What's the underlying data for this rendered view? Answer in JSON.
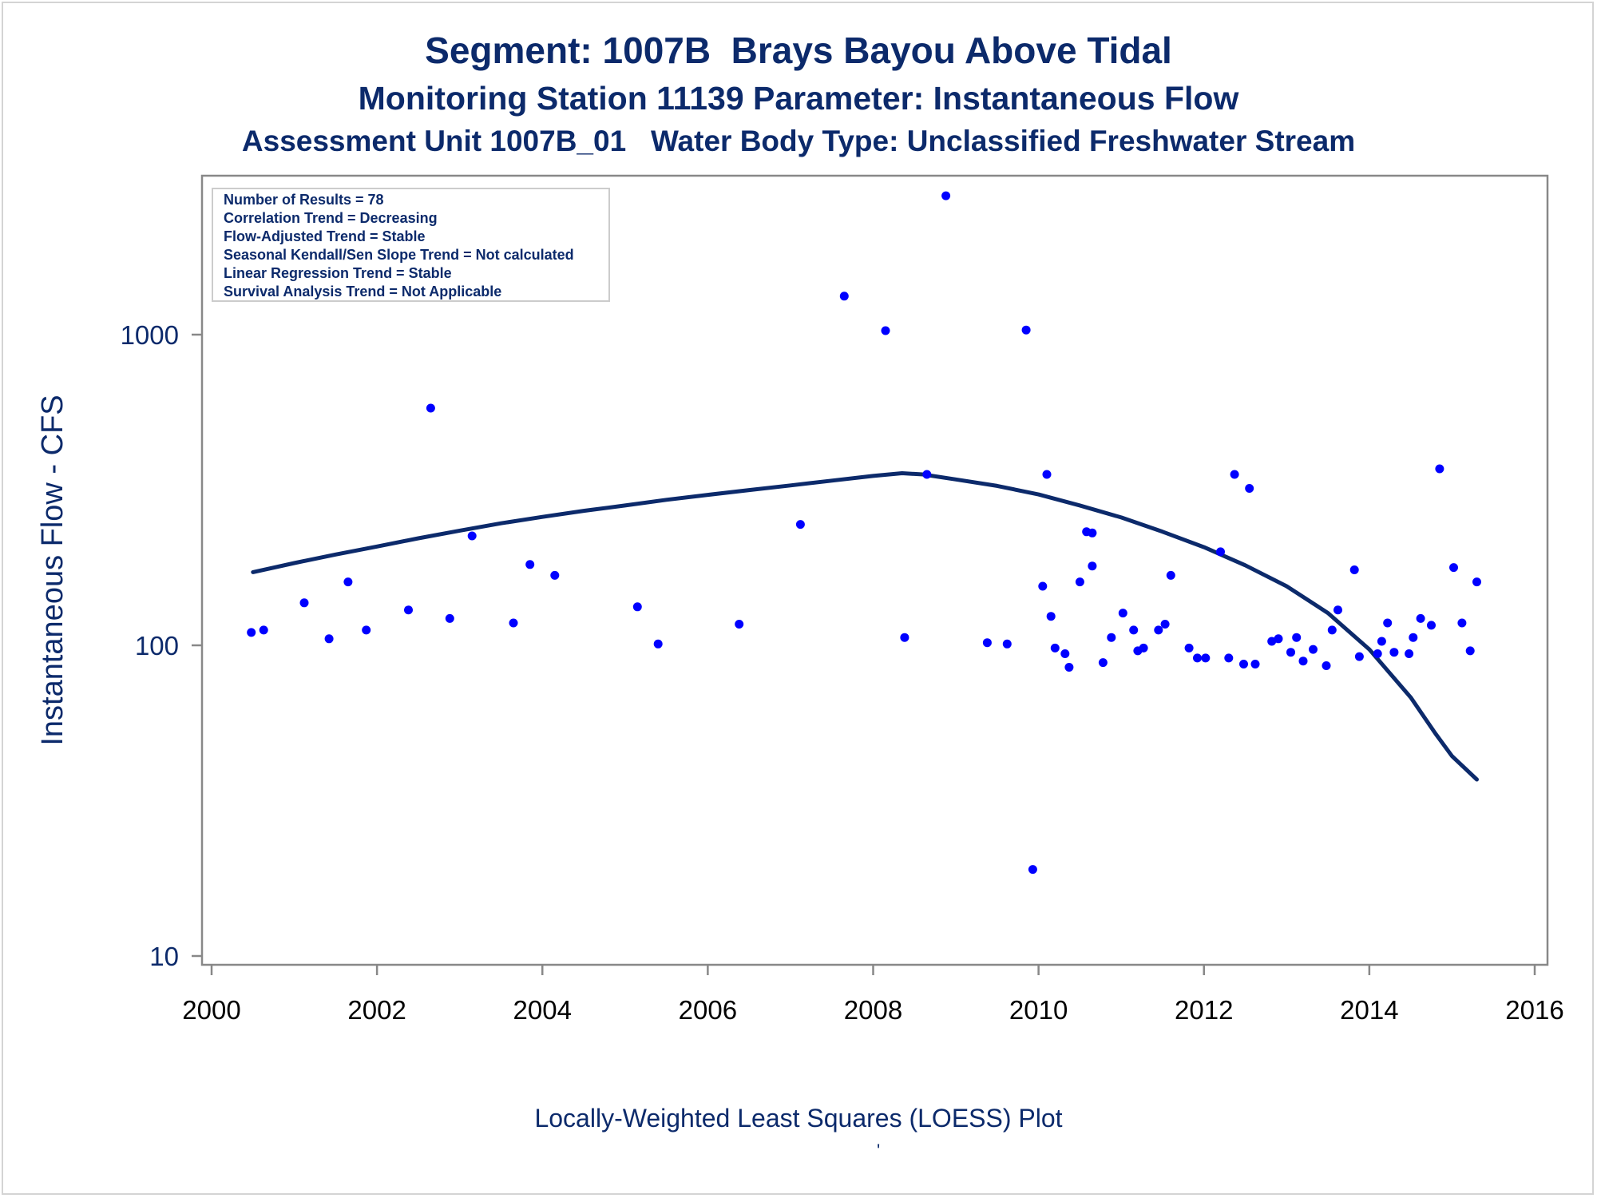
{
  "colors": {
    "text": "#0c2a6b",
    "marker": "#0000ff",
    "loess_line": "#0c2a6b",
    "axis": "#888888"
  },
  "titles": {
    "line1": "Segment: 1007B  Brays Bayou Above Tidal",
    "line2": "Monitoring Station 11139 Parameter: Instantaneous Flow",
    "line3": "Assessment Unit 1007B_01   Water Body Type: Unclassified Freshwater Stream"
  },
  "caption": {
    "text": "Locally-Weighted Least Squares (LOESS) Plot",
    "mark": "'"
  },
  "chart_data": {
    "type": "scatter",
    "title": "Segment: 1007B  Brays Bayou Above Tidal",
    "xlabel": "",
    "ylabel": "Instantaneous Flow - CFS",
    "x_scale": "linear",
    "y_scale": "log",
    "xlim": [
      2000,
      2016
    ],
    "ylim": [
      10,
      3000
    ],
    "grid": false,
    "x_ticks": [
      2000,
      2002,
      2004,
      2006,
      2008,
      2010,
      2012,
      2014,
      2016
    ],
    "x_tick_labels": [
      "2000",
      "2002",
      "2004",
      "2006",
      "2008",
      "2010",
      "2012",
      "2014",
      "2016"
    ],
    "y_ticks": [
      10,
      100,
      1000
    ],
    "y_tick_labels": [
      "10",
      "100",
      "1000"
    ],
    "legend": {
      "placement": "top-left",
      "entries": [
        "Number of Results = 78",
        "Correlation Trend = Decreasing",
        "Flow-Adjusted Trend = Stable",
        "Seasonal Kendall/Sen Slope Trend = Not calculated",
        "Linear Regression Trend = Stable",
        "Survival Analysis Trend = Not Applicable"
      ]
    },
    "points": [
      [
        2000.48,
        110
      ],
      [
        2000.63,
        112
      ],
      [
        2001.12,
        137
      ],
      [
        2001.42,
        105
      ],
      [
        2001.65,
        160
      ],
      [
        2001.87,
        112
      ],
      [
        2002.38,
        130
      ],
      [
        2002.65,
        580
      ],
      [
        2002.88,
        122
      ],
      [
        2003.15,
        225
      ],
      [
        2003.65,
        118
      ],
      [
        2003.85,
        182
      ],
      [
        2004.15,
        168
      ],
      [
        2005.15,
        133
      ],
      [
        2005.4,
        101
      ],
      [
        2006.38,
        117
      ],
      [
        2007.12,
        245
      ],
      [
        2007.65,
        1330
      ],
      [
        2008.15,
        1030
      ],
      [
        2008.38,
        106
      ],
      [
        2008.65,
        355
      ],
      [
        2008.88,
        2800
      ],
      [
        2009.38,
        102
      ],
      [
        2009.62,
        101
      ],
      [
        2009.85,
        1035
      ],
      [
        2009.93,
        19
      ],
      [
        2010.05,
        155
      ],
      [
        2010.1,
        355
      ],
      [
        2010.15,
        124
      ],
      [
        2010.2,
        98
      ],
      [
        2010.32,
        94
      ],
      [
        2010.37,
        85
      ],
      [
        2010.5,
        160
      ],
      [
        2010.58,
        232
      ],
      [
        2010.65,
        230
      ],
      [
        2010.65,
        180
      ],
      [
        2010.78,
        88
      ],
      [
        2010.88,
        106
      ],
      [
        2011.02,
        127
      ],
      [
        2011.15,
        112
      ],
      [
        2011.2,
        96
      ],
      [
        2011.27,
        98
      ],
      [
        2011.45,
        112
      ],
      [
        2011.53,
        117
      ],
      [
        2011.6,
        168
      ],
      [
        2011.82,
        98
      ],
      [
        2011.92,
        91
      ],
      [
        2012.02,
        91
      ],
      [
        2012.2,
        200
      ],
      [
        2012.3,
        91
      ],
      [
        2012.37,
        355
      ],
      [
        2012.48,
        87
      ],
      [
        2012.55,
        320
      ],
      [
        2012.62,
        87
      ],
      [
        2012.82,
        103
      ],
      [
        2012.9,
        105
      ],
      [
        2013.05,
        95
      ],
      [
        2013.12,
        106
      ],
      [
        2013.2,
        89
      ],
      [
        2013.32,
        97
      ],
      [
        2013.48,
        86
      ],
      [
        2013.55,
        112
      ],
      [
        2013.62,
        130
      ],
      [
        2013.82,
        175
      ],
      [
        2013.88,
        92
      ],
      [
        2014.1,
        94
      ],
      [
        2014.15,
        103
      ],
      [
        2014.22,
        118
      ],
      [
        2014.3,
        95
      ],
      [
        2014.48,
        94
      ],
      [
        2014.53,
        106
      ],
      [
        2014.62,
        122
      ],
      [
        2014.75,
        116
      ],
      [
        2014.85,
        370
      ],
      [
        2015.02,
        178
      ],
      [
        2015.12,
        118
      ],
      [
        2015.22,
        96
      ],
      [
        2015.3,
        160
      ]
    ],
    "loess": [
      [
        2000.5,
        172
      ],
      [
        2001.0,
        184
      ],
      [
        2001.5,
        196
      ],
      [
        2002.0,
        208
      ],
      [
        2002.5,
        221
      ],
      [
        2003.0,
        234
      ],
      [
        2003.5,
        247
      ],
      [
        2004.0,
        259
      ],
      [
        2004.5,
        271
      ],
      [
        2005.0,
        282
      ],
      [
        2005.5,
        294
      ],
      [
        2006.0,
        305
      ],
      [
        2006.5,
        316
      ],
      [
        2007.0,
        327
      ],
      [
        2007.5,
        339
      ],
      [
        2008.0,
        351
      ],
      [
        2008.35,
        358
      ],
      [
        2008.6,
        355
      ],
      [
        2009.0,
        342
      ],
      [
        2009.5,
        326
      ],
      [
        2010.0,
        306
      ],
      [
        2010.5,
        282
      ],
      [
        2011.0,
        258
      ],
      [
        2011.5,
        232
      ],
      [
        2012.0,
        207
      ],
      [
        2012.5,
        181
      ],
      [
        2013.0,
        155
      ],
      [
        2013.5,
        127
      ],
      [
        2014.0,
        97
      ],
      [
        2014.5,
        68
      ],
      [
        2014.8,
        52
      ],
      [
        2015.0,
        44
      ],
      [
        2015.3,
        37
      ]
    ]
  }
}
